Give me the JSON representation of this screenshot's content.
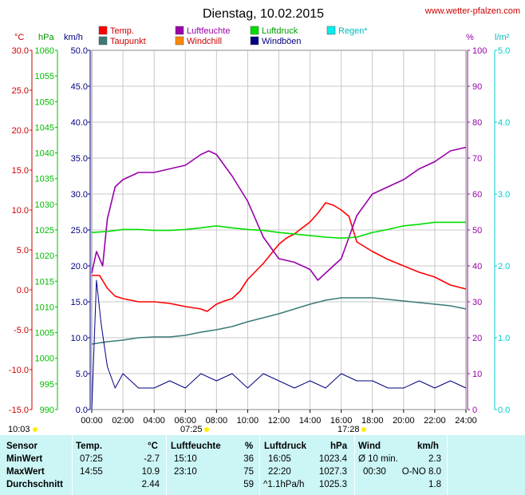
{
  "title": "Dienstag, 10.02.2015",
  "site": "www.wetter-pfalzen.com",
  "legend": [
    {
      "label": "Temp.",
      "color": "#ff0000"
    },
    {
      "label": "Luftfeuchte",
      "color": "#9900aa"
    },
    {
      "label": "Luftdruck",
      "color": "#00dd00"
    },
    {
      "label": "Regen*",
      "color": "#00dddd"
    },
    {
      "label": "Taupunkt",
      "color": "#3c7a78"
    },
    {
      "label": "Windchill",
      "color": "#ff8800"
    },
    {
      "label": "Windböen",
      "color": "#000080"
    }
  ],
  "axis_units": {
    "temp": "°C",
    "pressure": "hPa",
    "wind": "km/h",
    "humidity": "%",
    "rain": "l/m²"
  },
  "sun": {
    "rise_label": "10:03",
    "sunrise": "07:25",
    "sunset": "17:28"
  },
  "chart_data": {
    "type": "line",
    "x_ticks": [
      "00:00",
      "02:00",
      "04:00",
      "06:00",
      "08:00",
      "10:00",
      "12:00",
      "14:00",
      "16:00",
      "18:00",
      "20:00",
      "22:00",
      "24:00"
    ],
    "axes": {
      "temp": {
        "label": "°C",
        "range": [
          -15,
          30
        ],
        "ticks": [
          "-15.0",
          "-10.0",
          "-5.0",
          "0.0",
          "5.0",
          "10.0",
          "15.0",
          "20.0",
          "25.0",
          "30.0"
        ]
      },
      "pressure": {
        "label": "hPa",
        "range": [
          990,
          1060
        ],
        "ticks": [
          "990",
          "995",
          "1000",
          "1005",
          "1010",
          "1015",
          "1020",
          "1025",
          "1030",
          "1035",
          "1040",
          "1045",
          "1050",
          "1055",
          "1060"
        ]
      },
      "wind": {
        "label": "km/h",
        "range": [
          0,
          50
        ],
        "ticks": [
          "0.0",
          "5.0",
          "10.0",
          "15.0",
          "20.0",
          "25.0",
          "30.0",
          "35.0",
          "40.0",
          "45.0",
          "50.0"
        ]
      },
      "humidity": {
        "label": "%",
        "range": [
          0,
          100
        ],
        "ticks": [
          "0",
          "10",
          "20",
          "30",
          "40",
          "50",
          "60",
          "70",
          "80",
          "90",
          "100"
        ]
      },
      "rain": {
        "label": "l/m²",
        "range": [
          0,
          5
        ],
        "ticks": [
          "0.0",
          "1.0",
          "2.0",
          "3.0",
          "4.0",
          "5.0"
        ]
      }
    },
    "series": [
      {
        "name": "Temp.",
        "axis": "temp",
        "color": "#ff0000",
        "x": [
          0,
          0.5,
          1,
          1.5,
          2,
          3,
          4,
          5,
          6,
          7,
          7.4,
          8,
          8.5,
          9,
          9.5,
          10,
          11,
          12,
          12.5,
          13,
          14,
          14.5,
          15,
          15.5,
          16,
          16.5,
          17,
          18,
          19,
          20,
          21,
          22,
          23,
          24
        ],
        "y": [
          1.8,
          1.8,
          0.2,
          -0.8,
          -1.1,
          -1.5,
          -1.5,
          -1.7,
          -2.1,
          -2.4,
          -2.7,
          -1.8,
          -1.4,
          -1.1,
          -0.2,
          1.3,
          3.3,
          5.7,
          6.5,
          7.0,
          8.5,
          9.6,
          10.9,
          10.6,
          10.0,
          9.2,
          6.0,
          4.8,
          3.8,
          3.0,
          2.2,
          1.6,
          0.6,
          0.1
        ]
      },
      {
        "name": "Taupunkt",
        "axis": "temp",
        "color": "#3c7a78",
        "x": [
          0,
          1,
          2,
          3,
          4,
          5,
          6,
          7,
          8,
          9,
          10,
          11,
          12,
          13,
          14,
          15,
          16,
          17,
          18,
          19,
          20,
          21,
          22,
          23,
          24
        ],
        "y": [
          -6.8,
          -6.5,
          -6.3,
          -6.0,
          -5.9,
          -5.9,
          -5.7,
          -5.3,
          -5.0,
          -4.6,
          -4.0,
          -3.5,
          -3.0,
          -2.4,
          -1.8,
          -1.3,
          -1.0,
          -1.0,
          -1.0,
          -1.2,
          -1.4,
          -1.6,
          -1.8,
          -2.0,
          -2.4
        ]
      },
      {
        "name": "Luftfeuchte",
        "axis": "humidity",
        "color": "#9900aa",
        "x": [
          0,
          0.3,
          0.7,
          1,
          1.5,
          2,
          3,
          4,
          5,
          6,
          7,
          7.5,
          8,
          9,
          10,
          11,
          12,
          13,
          14,
          14.5,
          15,
          16,
          17,
          18,
          19,
          20,
          21,
          22,
          23,
          24
        ],
        "y": [
          38,
          44,
          40,
          53,
          62,
          64,
          66,
          66,
          67,
          68,
          71,
          72,
          71,
          65,
          58,
          48,
          42,
          41,
          39,
          36,
          38,
          42,
          54,
          60,
          62,
          64,
          67,
          69,
          72,
          73
        ]
      },
      {
        "name": "Luftdruck",
        "axis": "pressure",
        "color": "#00dd00",
        "x": [
          0,
          1,
          2,
          3,
          4,
          5,
          6,
          7,
          8,
          9,
          10,
          11,
          12,
          13,
          14,
          15,
          16,
          17,
          18,
          19,
          20,
          21,
          22,
          23,
          24
        ],
        "y": [
          1024.5,
          1024.7,
          1025.1,
          1025.1,
          1024.9,
          1024.9,
          1025.1,
          1025.4,
          1025.8,
          1025.4,
          1025.1,
          1024.9,
          1024.5,
          1024.2,
          1023.9,
          1023.6,
          1023.4,
          1023.6,
          1024.5,
          1025.1,
          1025.8,
          1026.1,
          1026.5,
          1026.5,
          1026.5
        ]
      },
      {
        "name": "Windböen",
        "axis": "wind",
        "color": "#000080",
        "x": [
          0,
          0.3,
          0.6,
          1,
          1.5,
          2,
          3,
          4,
          5,
          6,
          7,
          8,
          9,
          10,
          11,
          12,
          13,
          14,
          15,
          16,
          17,
          18,
          19,
          20,
          21,
          22,
          23,
          24
        ],
        "y": [
          0,
          18,
          12,
          6,
          3,
          5,
          3,
          3,
          4,
          3,
          5,
          4,
          5,
          3,
          5,
          4,
          3,
          4,
          3,
          5,
          4,
          4,
          3,
          3,
          4,
          3,
          4,
          3
        ]
      }
    ]
  },
  "stats": {
    "headers": {
      "sensor": "Sensor",
      "temp": "Temp.",
      "temp_unit": "°C",
      "hum": "Luftfeuchte",
      "hum_unit": "%",
      "press": "Luftdruck",
      "press_unit": "hPa",
      "wind": "Wind",
      "wind_unit": "km/h"
    },
    "rows": [
      {
        "label": "MinWert",
        "temp_time": "07:25",
        "temp_val": "-2.7",
        "hum_time": "15:10",
        "hum_val": "36",
        "press_time": "16:05",
        "press_val": "1023.4",
        "wind_label": "Ø 10 min.",
        "wind_val": "2.3"
      },
      {
        "label": "MaxWert",
        "temp_time": "14:55",
        "temp_val": "10.9",
        "hum_time": "23:10",
        "hum_val": "75",
        "press_time": "22:20",
        "press_val": "1027.3",
        "wind_label": "00:30",
        "wind_val": "O-NO 8.0"
      },
      {
        "label": "Durchschnitt",
        "temp_time": "",
        "temp_val": "2.44",
        "hum_time": "",
        "hum_val": "59",
        "press_time": "^1.1hPa/h",
        "press_val": "1025.3",
        "wind_label": "",
        "wind_val": "1.8"
      }
    ]
  }
}
